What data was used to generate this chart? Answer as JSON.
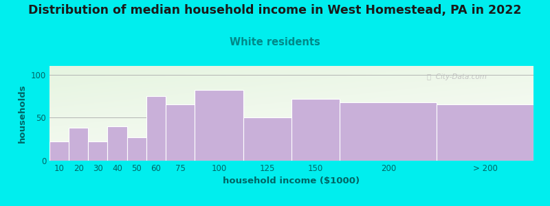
{
  "title": "Distribution of median household income in West Homestead, PA in 2022",
  "subtitle": "White residents",
  "xlabel": "household income ($1000)",
  "ylabel": "households",
  "background_color": "#00EEEE",
  "bar_color": "#c9b0d9",
  "bar_edge_color": "#ffffff",
  "title_color": "#1a1a1a",
  "subtitle_color": "#008888",
  "axis_label_color": "#006666",
  "tick_label_color": "#006666",
  "watermark_color": "#bbbbbb",
  "categories": [
    "10",
    "20",
    "30",
    "40",
    "50",
    "60",
    "75",
    "100",
    "125",
    "150",
    "200",
    "> 200"
  ],
  "left_edges": [
    0,
    10,
    20,
    30,
    40,
    50,
    60,
    75,
    100,
    125,
    150,
    200
  ],
  "widths": [
    10,
    10,
    10,
    10,
    10,
    10,
    15,
    25,
    25,
    25,
    50,
    50
  ],
  "values": [
    22,
    38,
    22,
    40,
    27,
    75,
    65,
    82,
    50,
    72,
    68,
    65
  ],
  "ylim": [
    0,
    110
  ],
  "yticks": [
    0,
    50,
    100
  ],
  "title_fontsize": 12.5,
  "subtitle_fontsize": 10.5,
  "label_fontsize": 9.5,
  "tick_fontsize": 8.5,
  "plot_bg_green": [
    0.9,
    0.96,
    0.88
  ],
  "plot_bg_white": [
    0.99,
    0.99,
    0.98
  ]
}
